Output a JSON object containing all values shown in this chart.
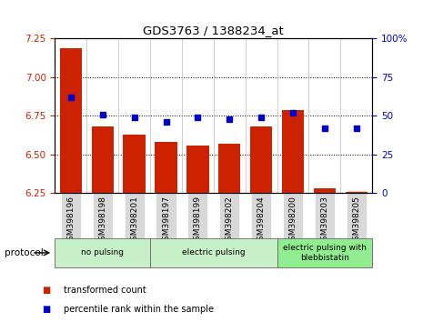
{
  "title": "GDS3763 / 1388234_at",
  "samples": [
    "GSM398196",
    "GSM398198",
    "GSM398201",
    "GSM398197",
    "GSM398199",
    "GSM398202",
    "GSM398204",
    "GSM398200",
    "GSM398203",
    "GSM398205"
  ],
  "transformed_count": [
    7.19,
    6.68,
    6.63,
    6.58,
    6.56,
    6.57,
    6.68,
    6.79,
    6.28,
    6.26
  ],
  "percentile_rank": [
    62,
    51,
    49,
    46,
    49,
    48,
    49,
    52,
    42,
    42
  ],
  "ylim_left": [
    6.25,
    7.25
  ],
  "ylim_right": [
    0,
    100
  ],
  "yticks_left": [
    6.25,
    6.5,
    6.75,
    7.0,
    7.25
  ],
  "yticks_right": [
    0,
    25,
    50,
    75,
    100
  ],
  "bar_color": "#cc2200",
  "dot_color": "#0000cc",
  "bar_bottom": 6.25,
  "group_labels": [
    "no pulsing",
    "electric pulsing",
    "electric pulsing with\nblebbistatin"
  ],
  "group_starts": [
    0,
    3,
    7
  ],
  "group_ends": [
    3,
    7,
    10
  ],
  "group_colors": [
    "#c8f0c8",
    "#c8f0c8",
    "#90ee90"
  ],
  "legend_labels": [
    "transformed count",
    "percentile rank within the sample"
  ],
  "legend_colors": [
    "#cc2200",
    "#0000cc"
  ],
  "protocol_label": "protocol"
}
